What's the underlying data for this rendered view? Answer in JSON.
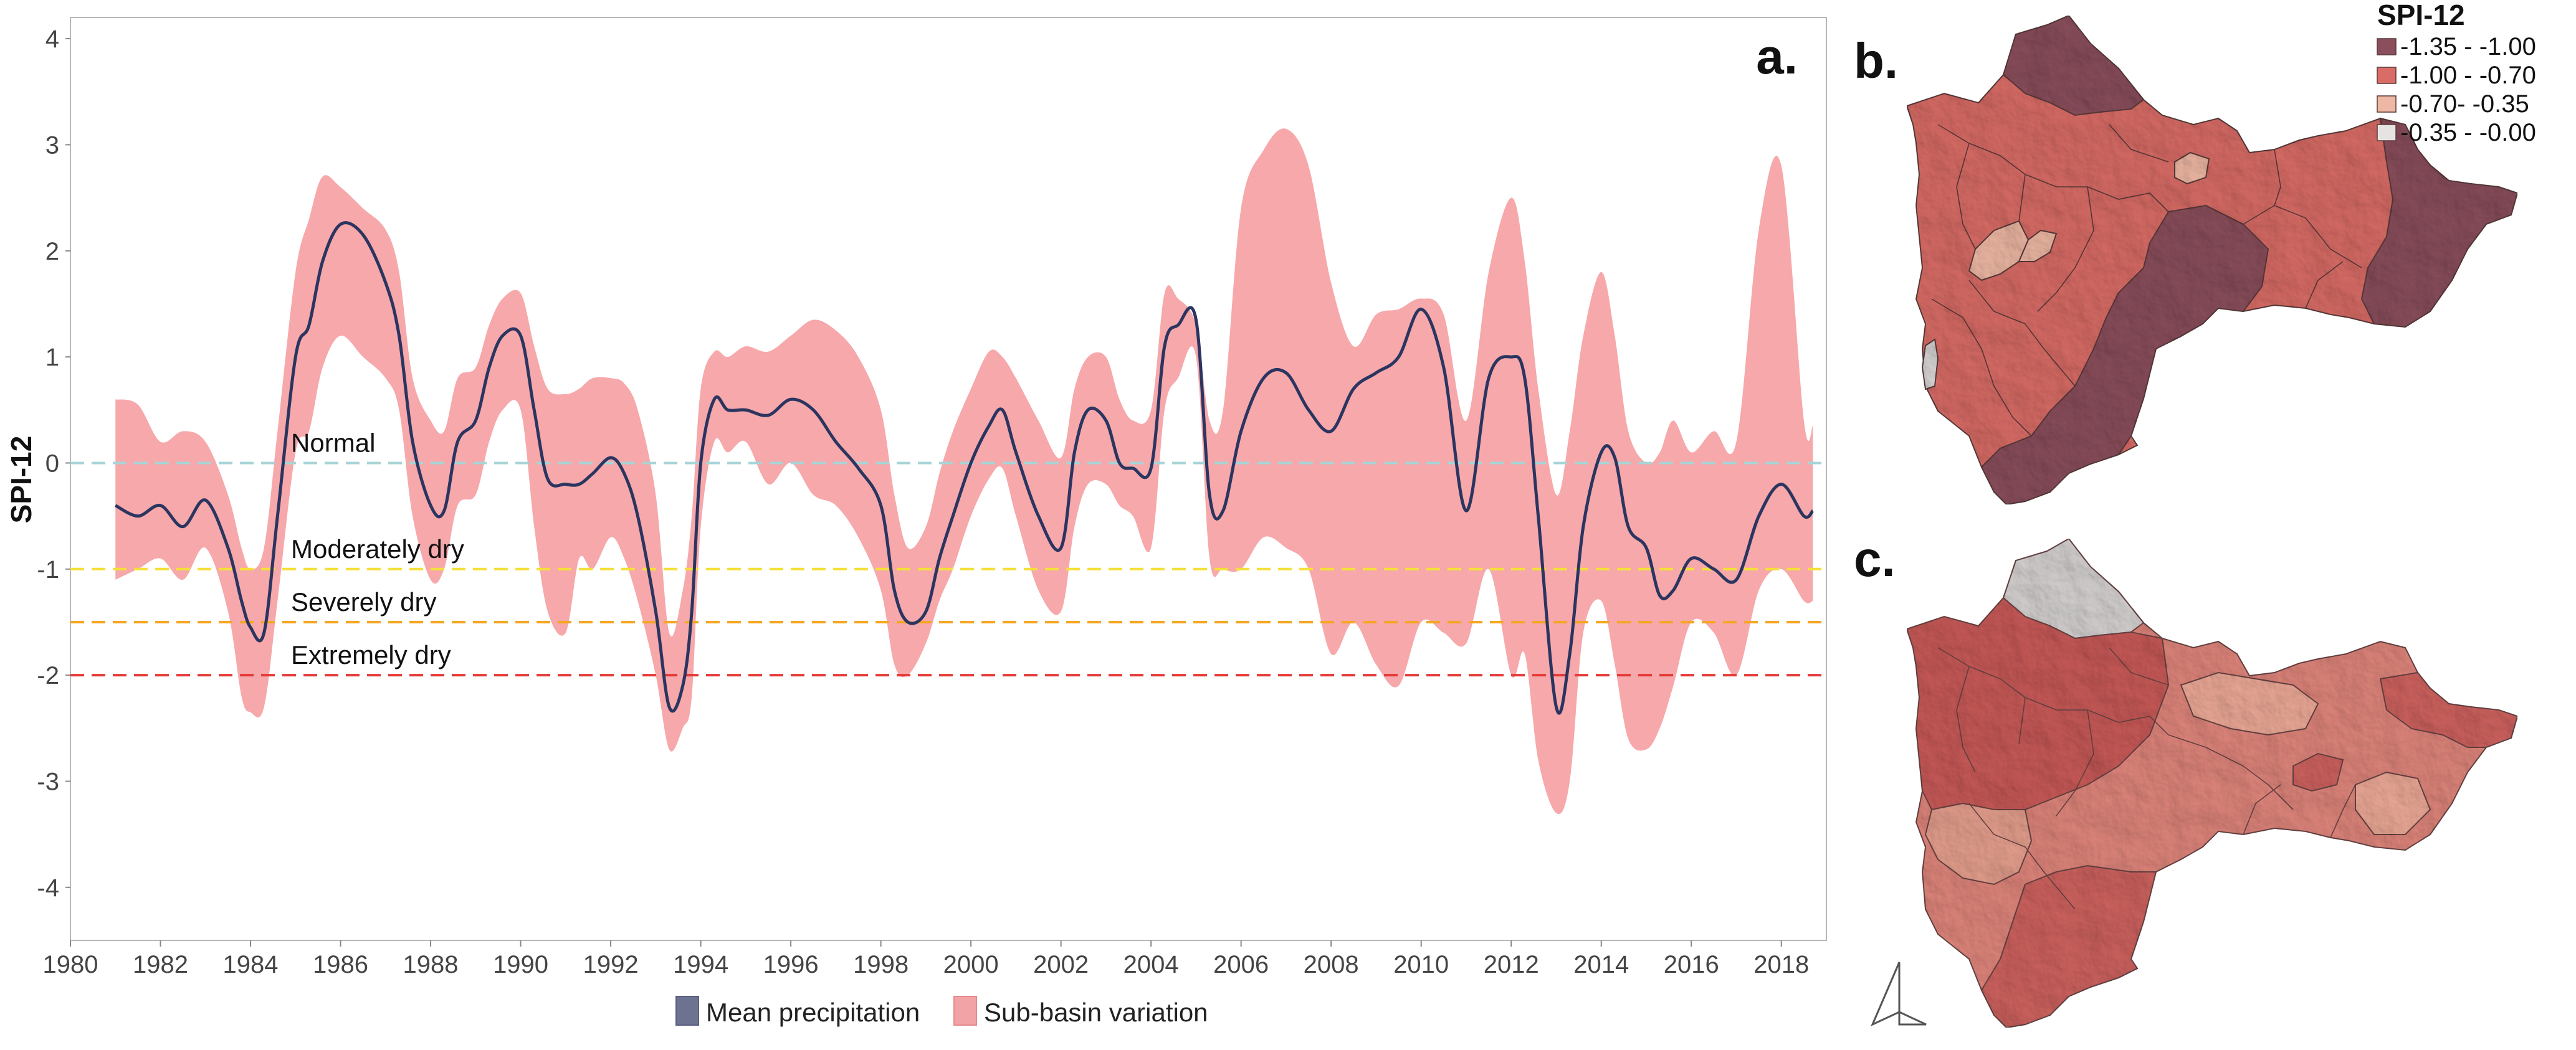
{
  "chart_data": {
    "type": "area",
    "panel_label": "a.",
    "ylabel": "SPI-12",
    "xlabel": "",
    "xlim": [
      1980,
      2019
    ],
    "ylim": [
      -4.5,
      4.2
    ],
    "x_ticks": [
      1980,
      1982,
      1984,
      1986,
      1988,
      1990,
      1992,
      1994,
      1996,
      1998,
      2000,
      2002,
      2004,
      2006,
      2008,
      2010,
      2012,
      2014,
      2016,
      2018
    ],
    "y_ticks": [
      4,
      3,
      2,
      1,
      0,
      -1,
      -2,
      -3,
      -4
    ],
    "grid": false,
    "legend_position": "bottom",
    "legend": [
      {
        "label": "Mean precipitation",
        "color": "#2b3560"
      },
      {
        "label": "Sub-basin variation",
        "color": "#f2a3a5"
      }
    ],
    "thresholds": [
      {
        "label": "Normal",
        "value": 0,
        "color": "#a8d4d6"
      },
      {
        "label": "Moderately dry",
        "value": -1,
        "color": "#f5e03a"
      },
      {
        "label": "Severely dry",
        "value": -1.5,
        "color": "#f5a623"
      },
      {
        "label": "Extremely dry",
        "value": -2,
        "color": "#e53935"
      }
    ],
    "series": [
      {
        "name": "Mean precipitation",
        "x": [
          1981.0,
          1981.5,
          1982.0,
          1982.5,
          1983.0,
          1983.5,
          1983.8,
          1984.0,
          1984.3,
          1984.6,
          1985.0,
          1985.3,
          1985.6,
          1986.0,
          1986.5,
          1987.0,
          1987.3,
          1987.6,
          1988.0,
          1988.3,
          1988.6,
          1989.0,
          1989.3,
          1989.6,
          1990.0,
          1990.3,
          1990.6,
          1991.0,
          1991.3,
          1991.6,
          1992.0,
          1992.3,
          1992.6,
          1993.0,
          1993.3,
          1993.6,
          1993.8,
          1994.0,
          1994.3,
          1994.6,
          1995.0,
          1995.5,
          1996.0,
          1996.5,
          1997.0,
          1997.5,
          1998.0,
          1998.3,
          1998.6,
          1999.0,
          1999.3,
          1999.6,
          2000.0,
          2000.4,
          2000.7,
          2001.0,
          2001.5,
          2002.0,
          2002.3,
          2002.6,
          2003.0,
          2003.3,
          2003.6,
          2004.0,
          2004.3,
          2004.6,
          2005.0,
          2005.3,
          2005.6,
          2006.0,
          2006.5,
          2007.0,
          2007.5,
          2008.0,
          2008.5,
          2009.0,
          2009.5,
          2010.0,
          2010.5,
          2011.0,
          2011.5,
          2012.0,
          2012.3,
          2012.6,
          2013.0,
          2013.3,
          2013.6,
          2014.0,
          2014.3,
          2014.6,
          2015.0,
          2015.3,
          2015.6,
          2016.0,
          2016.5,
          2017.0,
          2017.5,
          2018.0,
          2018.5,
          2018.7
        ],
        "values": [
          -0.4,
          -0.5,
          -0.4,
          -0.6,
          -0.35,
          -0.8,
          -1.3,
          -1.55,
          -1.6,
          -0.5,
          1.0,
          1.3,
          1.9,
          2.25,
          2.15,
          1.7,
          1.2,
          0.2,
          -0.4,
          -0.45,
          0.2,
          0.4,
          0.9,
          1.2,
          1.2,
          0.5,
          -0.15,
          -0.2,
          -0.2,
          -0.1,
          0.05,
          -0.1,
          -0.5,
          -1.4,
          -2.3,
          -2.1,
          -1.4,
          0.0,
          0.6,
          0.5,
          0.5,
          0.45,
          0.6,
          0.5,
          0.2,
          -0.05,
          -0.4,
          -1.2,
          -1.5,
          -1.4,
          -0.9,
          -0.5,
          0.0,
          0.35,
          0.5,
          0.1,
          -0.5,
          -0.8,
          0.1,
          0.5,
          0.4,
          0.0,
          -0.05,
          -0.05,
          1.1,
          1.3,
          1.35,
          -0.3,
          -0.45,
          0.3,
          0.8,
          0.85,
          0.5,
          0.3,
          0.7,
          0.85,
          1.0,
          1.45,
          0.9,
          -0.45,
          0.8,
          1.0,
          0.8,
          -0.5,
          -2.3,
          -1.8,
          -0.6,
          0.1,
          0.05,
          -0.6,
          -0.8,
          -1.25,
          -1.2,
          -0.9,
          -1.0,
          -1.1,
          -0.5,
          -0.2,
          -0.5,
          -0.45
        ]
      },
      {
        "name": "Sub-basin variation",
        "x": [
          1981.0,
          1981.5,
          1982.0,
          1982.5,
          1983.0,
          1983.5,
          1983.8,
          1984.0,
          1984.3,
          1984.6,
          1985.0,
          1985.3,
          1985.6,
          1986.0,
          1986.5,
          1987.0,
          1987.3,
          1987.6,
          1988.0,
          1988.3,
          1988.6,
          1989.0,
          1989.3,
          1989.6,
          1990.0,
          1990.3,
          1990.6,
          1991.0,
          1991.3,
          1991.6,
          1992.0,
          1992.3,
          1992.6,
          1993.0,
          1993.3,
          1993.6,
          1993.8,
          1994.0,
          1994.3,
          1994.6,
          1995.0,
          1995.5,
          1996.0,
          1996.5,
          1997.0,
          1997.5,
          1998.0,
          1998.3,
          1998.6,
          1999.0,
          1999.3,
          1999.6,
          2000.0,
          2000.4,
          2000.7,
          2001.0,
          2001.5,
          2002.0,
          2002.3,
          2002.6,
          2003.0,
          2003.3,
          2003.6,
          2004.0,
          2004.3,
          2004.6,
          2005.0,
          2005.3,
          2005.6,
          2006.0,
          2006.5,
          2007.0,
          2007.5,
          2008.0,
          2008.5,
          2009.0,
          2009.5,
          2010.0,
          2010.5,
          2011.0,
          2011.5,
          2012.0,
          2012.3,
          2012.6,
          2013.0,
          2013.3,
          2013.6,
          2014.0,
          2014.3,
          2014.6,
          2015.0,
          2015.3,
          2015.6,
          2016.0,
          2016.5,
          2017.0,
          2017.5,
          2018.0,
          2018.5,
          2018.7
        ],
        "upper": [
          0.6,
          0.55,
          0.2,
          0.3,
          0.2,
          -0.3,
          -0.8,
          -1.0,
          -0.8,
          0.3,
          1.8,
          2.3,
          2.7,
          2.6,
          2.4,
          2.2,
          1.8,
          0.8,
          0.4,
          0.3,
          0.8,
          0.9,
          1.3,
          1.55,
          1.6,
          1.1,
          0.7,
          0.65,
          0.7,
          0.8,
          0.8,
          0.75,
          0.5,
          -0.3,
          -1.6,
          -1.2,
          -0.5,
          0.7,
          1.05,
          1.0,
          1.1,
          1.05,
          1.2,
          1.35,
          1.25,
          1.0,
          0.5,
          -0.3,
          -0.8,
          -0.6,
          -0.1,
          0.3,
          0.7,
          1.05,
          1.0,
          0.8,
          0.4,
          0.05,
          0.7,
          1.0,
          1.0,
          0.6,
          0.4,
          0.5,
          1.6,
          1.55,
          1.3,
          0.4,
          0.5,
          2.4,
          2.95,
          3.15,
          2.8,
          1.7,
          1.1,
          1.4,
          1.45,
          1.55,
          1.4,
          0.4,
          1.8,
          2.5,
          1.9,
          0.7,
          -0.3,
          0.3,
          1.2,
          1.8,
          1.2,
          0.3,
          0.0,
          0.1,
          0.4,
          0.1,
          0.3,
          0.2,
          2.2,
          2.8,
          0.4,
          0.35
        ],
        "lower": [
          -1.1,
          -1.0,
          -0.9,
          -1.1,
          -0.8,
          -1.4,
          -2.2,
          -2.35,
          -2.3,
          -1.3,
          0.1,
          0.3,
          0.9,
          1.2,
          1.0,
          0.8,
          0.5,
          -0.5,
          -1.1,
          -1.0,
          -0.4,
          -0.3,
          0.2,
          0.5,
          0.5,
          -0.6,
          -1.4,
          -1.6,
          -0.9,
          -1.0,
          -0.7,
          -0.9,
          -1.3,
          -2.0,
          -2.7,
          -2.5,
          -2.2,
          -0.6,
          0.2,
          0.1,
          0.2,
          -0.2,
          0.0,
          -0.3,
          -0.4,
          -0.7,
          -1.2,
          -1.9,
          -2.0,
          -1.7,
          -1.3,
          -1.0,
          -0.5,
          -0.15,
          -0.05,
          -0.5,
          -1.2,
          -1.4,
          -0.6,
          -0.2,
          -0.2,
          -0.4,
          -0.5,
          -0.8,
          0.5,
          0.8,
          1.0,
          -0.9,
          -1.0,
          -1.0,
          -0.7,
          -0.8,
          -1.0,
          -1.8,
          -1.5,
          -1.9,
          -2.1,
          -1.5,
          -1.6,
          -1.7,
          -1.0,
          -2.0,
          -1.8,
          -2.8,
          -3.3,
          -3.0,
          -1.6,
          -1.3,
          -1.9,
          -2.6,
          -2.7,
          -2.5,
          -2.1,
          -1.5,
          -1.6,
          -2.0,
          -1.2,
          -1.0,
          -1.3,
          -1.3
        ]
      }
    ]
  },
  "maps": {
    "title": "SPI-12",
    "panels": [
      {
        "label": "b."
      },
      {
        "label": "c."
      }
    ],
    "legend_items": [
      {
        "label": "-1.35 - -1.00",
        "color": "#8a4e5c"
      },
      {
        "label": "-1.00 - -0.70",
        "color": "#d96c66"
      },
      {
        "label": "-0.70- -0.35",
        "color": "#eeb8a4"
      },
      {
        "label": "-0.35 - -0.00",
        "color": "#e6e3e3"
      }
    ],
    "north_arrow_icon": "north-arrow-icon"
  }
}
